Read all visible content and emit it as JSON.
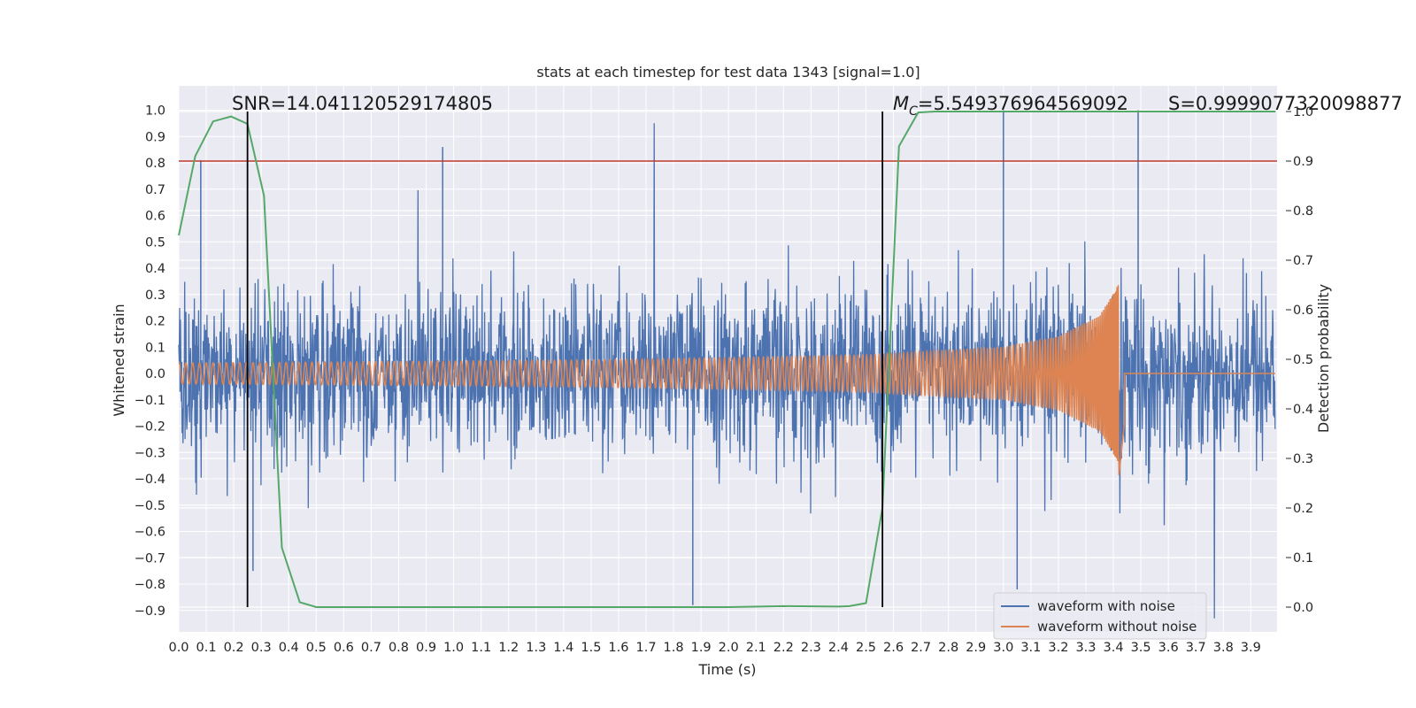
{
  "chart_data": {
    "type": "line",
    "title": "stats at each timestep for test data 1343 [signal=1.0]",
    "xlabel": "Time (s)",
    "ylabel": "Whitened strain",
    "y2label": "Detection probability",
    "xlim": [
      0.0,
      3.99
    ],
    "ylim": [
      -0.98,
      1.09
    ],
    "y2lim": [
      -0.05,
      1.05
    ],
    "xticks": [
      "0.0",
      "0.1",
      "0.2",
      "0.3",
      "0.4",
      "0.5",
      "0.6",
      "0.7",
      "0.8",
      "0.9",
      "1.0",
      "1.1",
      "1.2",
      "1.3",
      "1.4",
      "1.5",
      "1.6",
      "1.7",
      "1.8",
      "1.9",
      "2.0",
      "2.1",
      "2.2",
      "2.3",
      "2.4",
      "2.5",
      "2.6",
      "2.7",
      "2.8",
      "2.9",
      "3.0",
      "3.1",
      "3.2",
      "3.3",
      "3.4",
      "3.5",
      "3.6",
      "3.7",
      "3.8",
      "3.9"
    ],
    "yticks": [
      "1.0",
      "0.9",
      "0.8",
      "0.7",
      "0.6",
      "0.5",
      "0.4",
      "0.3",
      "0.2",
      "0.1",
      "0.0",
      "−0.1",
      "−0.2",
      "−0.3",
      "−0.4",
      "−0.5",
      "−0.6",
      "−0.7",
      "−0.8",
      "−0.9"
    ],
    "y2ticks": [
      "1.0",
      "0.9",
      "0.8",
      "0.7",
      "0.6",
      "0.5",
      "0.4",
      "0.3",
      "0.2",
      "0.1",
      "0.0"
    ],
    "grid": true,
    "legend_position": "lower-right",
    "annotations": {
      "snr": "SNR=14.041120529174805",
      "mc": "M",
      "mc_sub": "C",
      "mc_value": "=5.549376964569092",
      "s": "S=0.9999077320098877"
    },
    "threshold": {
      "y2": 0.9,
      "color": "#c0392b"
    },
    "markers_x": [
      0.25,
      2.56
    ],
    "series": [
      {
        "name": "waveform with noise",
        "color": "#4c72b0",
        "description_values": {
          "typical_amplitude": 0.35,
          "spikes_y": [
            0.86,
            0.81,
            1.0,
            1.0,
            -0.88,
            -0.82,
            -0.75
          ]
        }
      },
      {
        "name": "waveform without noise",
        "color": "#dd8452",
        "envelope": {
          "t": [
            0.0,
            0.5,
            1.0,
            1.5,
            2.0,
            2.5,
            3.0,
            3.2,
            3.35,
            3.42,
            3.44
          ],
          "amp": [
            0.04,
            0.043,
            0.047,
            0.052,
            0.06,
            0.07,
            0.1,
            0.14,
            0.22,
            0.34,
            0.0
          ]
        },
        "merger_t": 3.43
      },
      {
        "name": "detection probability",
        "color": "#55a868",
        "axis": "y2",
        "x": [
          0.0,
          0.06,
          0.125,
          0.19,
          0.25,
          0.31,
          0.375,
          0.44,
          0.5,
          0.75,
          1.0,
          1.5,
          2.0,
          2.2,
          2.4,
          2.44,
          2.5,
          2.56,
          2.62,
          2.69,
          2.75,
          3.0,
          3.5,
          3.99
        ],
        "y": [
          0.75,
          0.91,
          0.98,
          0.99,
          0.975,
          0.83,
          0.12,
          0.01,
          0.0,
          0.0,
          0.0,
          0.0,
          0.0,
          0.002,
          0.001,
          0.002,
          0.008,
          0.2,
          0.93,
          0.998,
          1.0,
          1.0,
          1.0,
          1.0
        ]
      }
    ]
  }
}
